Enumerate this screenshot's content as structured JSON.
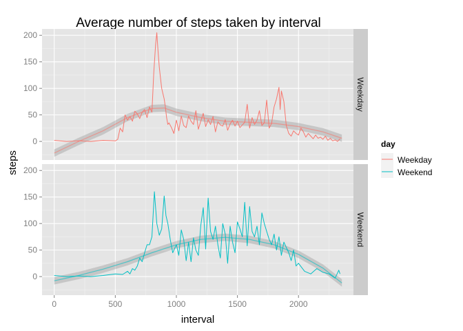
{
  "chart_data": {
    "type": "line",
    "title": "Average number of steps taken by interval",
    "xlabel": "interval",
    "ylabel": "steps",
    "xlim": [
      -100,
      2450
    ],
    "ylim": [
      -35,
      212
    ],
    "x_ticks": [
      0,
      500,
      1000,
      1500,
      2000
    ],
    "x_tick_labels": [
      "0",
      "500",
      "1000",
      "1500",
      "2000"
    ],
    "y_ticks": [
      0,
      50,
      100,
      150,
      200
    ],
    "y_tick_labels": [
      "0",
      "50",
      "100",
      "150",
      "200"
    ],
    "grid": true,
    "legend": {
      "title": "day",
      "position": "right",
      "entries": [
        "Weekday",
        "Weekend"
      ]
    },
    "series_colors": {
      "Weekday": "#F8766D",
      "Weekend": "#00BFC4"
    },
    "smooth_color": "#808080",
    "panels": [
      {
        "facet": "Weekday",
        "series": "Weekday",
        "x": [
          0,
          100,
          200,
          300,
          400,
          500,
          520,
          540,
          560,
          580,
          600,
          620,
          640,
          660,
          680,
          700,
          720,
          740,
          760,
          780,
          800,
          815,
          830,
          840,
          850,
          860,
          870,
          880,
          900,
          910,
          920,
          930,
          940,
          960,
          980,
          1000,
          1020,
          1040,
          1060,
          1080,
          1100,
          1120,
          1140,
          1160,
          1180,
          1200,
          1220,
          1240,
          1260,
          1280,
          1300,
          1320,
          1340,
          1360,
          1380,
          1400,
          1420,
          1440,
          1460,
          1480,
          1500,
          1520,
          1540,
          1560,
          1580,
          1600,
          1620,
          1640,
          1660,
          1680,
          1700,
          1720,
          1740,
          1760,
          1780,
          1800,
          1820,
          1840,
          1850,
          1860,
          1880,
          1900,
          1920,
          1940,
          1960,
          1980,
          2000,
          2020,
          2040,
          2060,
          2080,
          2100,
          2120,
          2140,
          2160,
          2180,
          2200,
          2220,
          2240,
          2260,
          2280,
          2300,
          2320,
          2340
        ],
        "values": [
          2,
          0,
          1,
          0,
          2,
          1,
          4,
          25,
          18,
          50,
          40,
          47,
          38,
          57,
          52,
          43,
          55,
          60,
          45,
          65,
          55,
          130,
          182,
          205,
          170,
          140,
          120,
          100,
          80,
          65,
          45,
          32,
          35,
          26,
          15,
          40,
          20,
          48,
          30,
          26,
          48,
          38,
          32,
          58,
          23,
          38,
          53,
          28,
          41,
          32,
          47,
          18,
          37,
          31,
          29,
          41,
          21,
          33,
          40,
          29,
          38,
          26,
          31,
          36,
          70,
          25,
          45,
          32,
          40,
          58,
          30,
          35,
          78,
          25,
          34,
          65,
          80,
          102,
          60,
          95,
          75,
          30,
          15,
          10,
          20,
          15,
          12,
          25,
          18,
          8,
          15,
          10,
          5,
          12,
          6,
          8,
          4,
          10,
          2,
          6,
          1,
          3,
          0,
          5
        ],
        "smooth": {
          "x": [
            0,
            200,
            400,
            600,
            800,
            900,
            1000,
            1200,
            1400,
            1600,
            1800,
            2000,
            2200,
            2355
          ],
          "values": [
            -22,
            0,
            20,
            45,
            62,
            63,
            55,
            45,
            38,
            36,
            34,
            28,
            18,
            6
          ]
        }
      },
      {
        "facet": "Weekend",
        "series": "Weekend",
        "x": [
          0,
          100,
          200,
          300,
          400,
          500,
          560,
          600,
          620,
          640,
          660,
          680,
          700,
          720,
          740,
          760,
          780,
          800,
          820,
          840,
          860,
          880,
          900,
          915,
          930,
          950,
          970,
          1000,
          1020,
          1040,
          1060,
          1080,
          1100,
          1120,
          1140,
          1160,
          1180,
          1200,
          1220,
          1240,
          1260,
          1280,
          1300,
          1320,
          1340,
          1360,
          1380,
          1400,
          1420,
          1440,
          1460,
          1480,
          1500,
          1520,
          1540,
          1560,
          1580,
          1600,
          1620,
          1640,
          1660,
          1680,
          1700,
          1720,
          1740,
          1760,
          1780,
          1800,
          1820,
          1840,
          1860,
          1880,
          1900,
          1920,
          1940,
          1960,
          1980,
          2000,
          2050,
          2100,
          2150,
          2200,
          2250,
          2300,
          2330,
          2340
        ],
        "values": [
          2,
          0,
          1,
          0,
          2,
          5,
          4,
          10,
          5,
          15,
          12,
          20,
          35,
          28,
          45,
          60,
          60,
          75,
          160,
          100,
          78,
          90,
          152,
          115,
          100,
          70,
          45,
          60,
          40,
          88,
          70,
          30,
          65,
          28,
          73,
          50,
          40,
          96,
          130,
          52,
          148,
          85,
          70,
          95,
          60,
          35,
          100,
          80,
          25,
          95,
          65,
          45,
          103,
          90,
          75,
          140,
          58,
          132,
          85,
          75,
          95,
          60,
          120,
          100,
          85,
          70,
          60,
          80,
          50,
          75,
          40,
          65,
          55,
          45,
          30,
          50,
          20,
          25,
          10,
          5,
          15,
          8,
          5,
          -3,
          12,
          5
        ],
        "smooth": {
          "x": [
            0,
            200,
            400,
            600,
            800,
            1000,
            1200,
            1400,
            1600,
            1800,
            2000,
            2200,
            2355
          ],
          "values": [
            -8,
            2,
            14,
            28,
            45,
            60,
            70,
            74,
            70,
            60,
            42,
            16,
            -12
          ]
        }
      }
    ]
  }
}
